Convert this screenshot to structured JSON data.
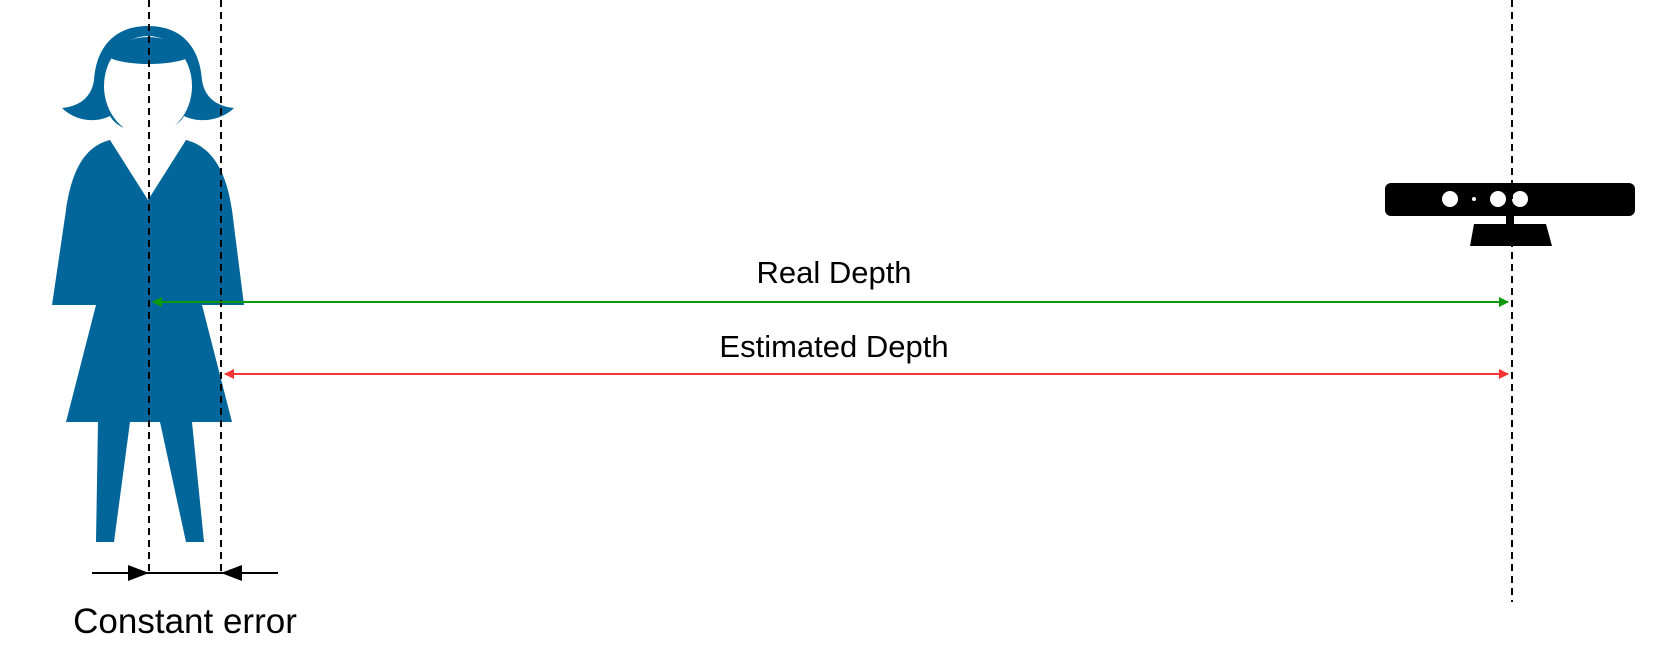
{
  "labels": {
    "real_depth": "Real Depth",
    "estimated_depth": "Estimated Depth",
    "constant_error": "Constant error"
  },
  "icons": {
    "person": "woman-figure-icon",
    "sensor": "depth-camera-icon"
  },
  "colors": {
    "person_fill": "#02669a",
    "real_depth_arrow": "#0a9a0a",
    "estimated_depth_arrow": "#ff3333",
    "guide_line": "#000000",
    "camera_fill": "#000000"
  }
}
